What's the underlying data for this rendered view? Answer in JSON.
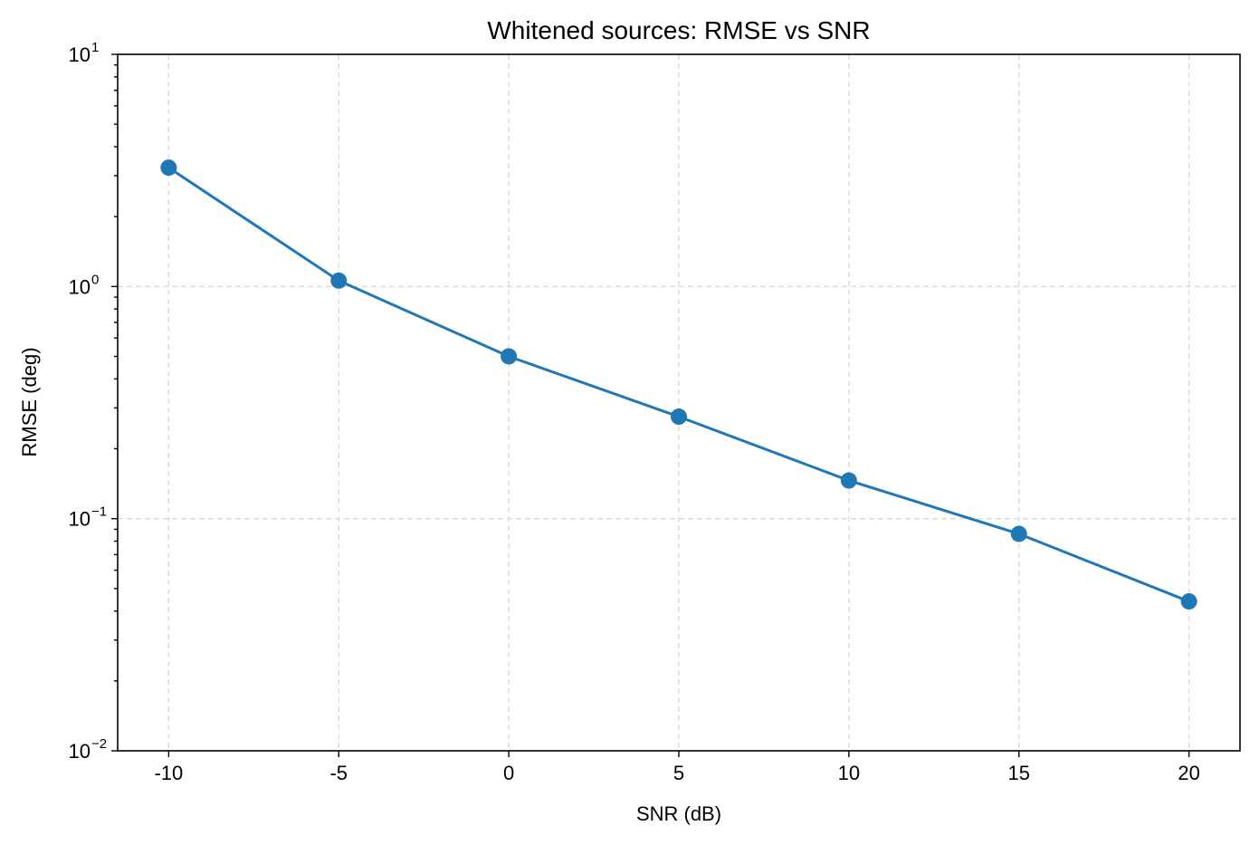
{
  "chart_data": {
    "type": "line",
    "title": "Whitened sources: RMSE vs SNR",
    "xlabel": "SNR (dB)",
    "ylabel": "RMSE (deg)",
    "x": [
      -10,
      -5,
      0,
      5,
      10,
      15,
      20
    ],
    "x_ticks": [
      "-10",
      "-5",
      "0",
      "5",
      "10",
      "15",
      "20"
    ],
    "xlim": [
      -11.5,
      21.5
    ],
    "y_scale": "log",
    "ylim": [
      0.01,
      10
    ],
    "y_ticks": [
      {
        "value": 0.01,
        "base": "10",
        "exp": "−2"
      },
      {
        "value": 0.1,
        "base": "10",
        "exp": "−1"
      },
      {
        "value": 1,
        "base": "10",
        "exp": "0"
      },
      {
        "value": 10,
        "base": "10",
        "exp": "1"
      }
    ],
    "grid": true,
    "series": [
      {
        "values": [
          3.25,
          1.06,
          0.5,
          0.275,
          0.146,
          0.086,
          0.044
        ],
        "color": "#1f77b4",
        "marker": "circle"
      }
    ]
  }
}
